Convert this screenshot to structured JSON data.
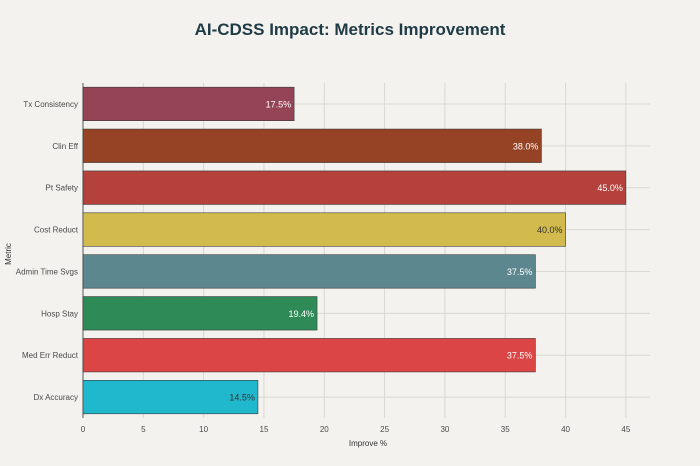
{
  "chart_data": {
    "type": "bar",
    "orientation": "horizontal",
    "title": "AI-CDSS Impact: Metrics Improvement",
    "xlabel": "Improve %",
    "ylabel": "Metric",
    "xlim": [
      0,
      47
    ],
    "xticks": [
      0,
      5,
      10,
      15,
      20,
      25,
      30,
      35,
      40,
      45
    ],
    "grid": true,
    "categories": [
      "Tx Consistency",
      "Clin Eff",
      "Pt Safety",
      "Cost Reduct",
      "Admin Time Svgs",
      "Hosp Stay",
      "Med Err Reduct",
      "Dx Accuracy"
    ],
    "values": [
      17.5,
      38.0,
      45.0,
      40.0,
      37.5,
      19.4,
      37.5,
      14.5
    ],
    "data_labels": [
      "17.5%",
      "38.0%",
      "45.0%",
      "40.0%",
      "37.5%",
      "19.4%",
      "37.5%",
      "14.5%"
    ],
    "colors": [
      "#944454",
      "#964325",
      "#b4413c",
      "#d2ba4c",
      "#5d878f",
      "#2e8b57",
      "#db4545",
      "#1fb8cd"
    ],
    "label_colors": [
      "#ffffff",
      "#ffffff",
      "#ffffff",
      "#333333",
      "#ffffff",
      "#ffffff",
      "#ffffff",
      "#333333"
    ]
  }
}
